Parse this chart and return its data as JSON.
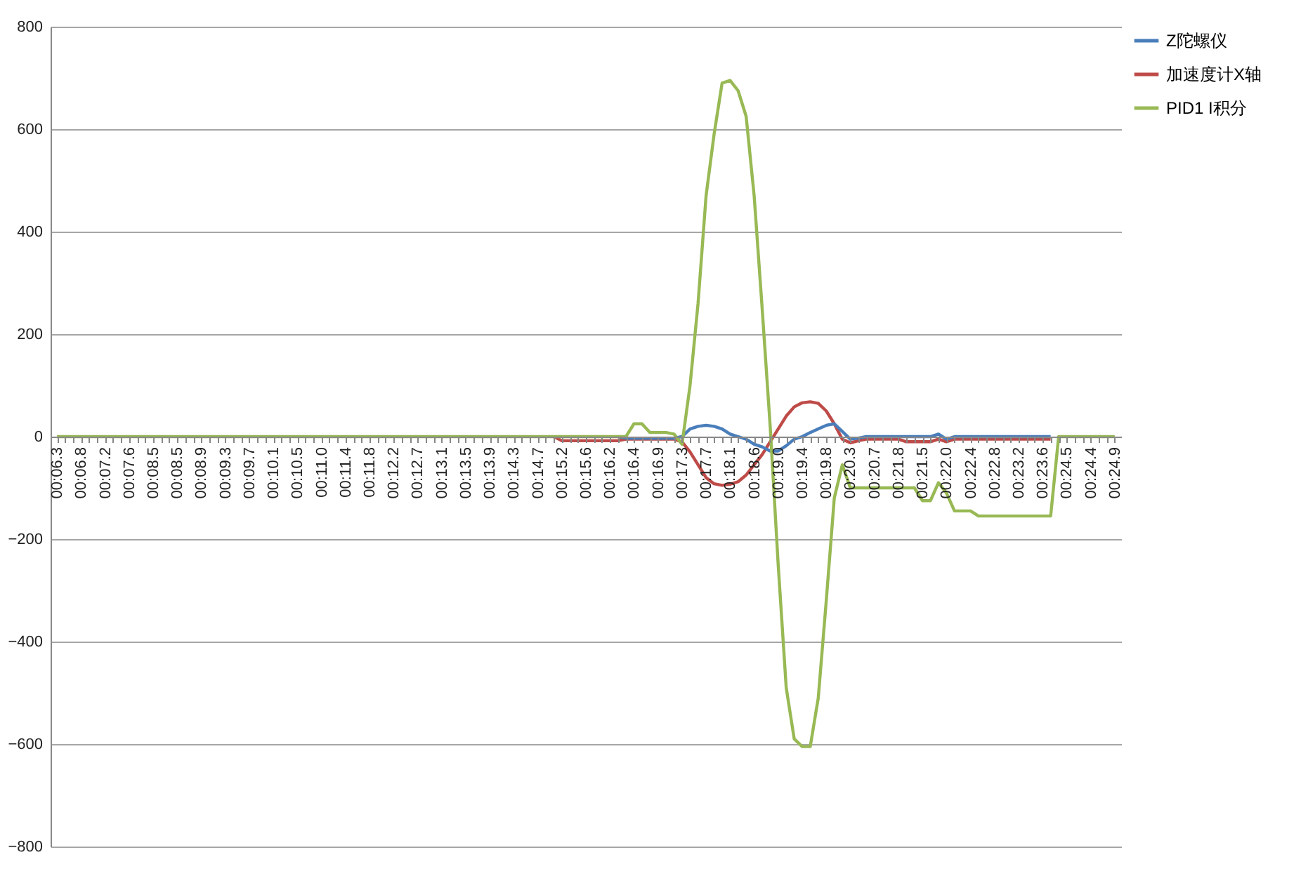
{
  "chart_data": {
    "type": "line",
    "categories": [
      "00:06.3",
      null,
      null,
      "00:06.8",
      null,
      null,
      "00:07.2",
      null,
      null,
      "00:07.6",
      null,
      null,
      "00:08.5",
      null,
      null,
      "00:08.5",
      null,
      null,
      "00:08.9",
      null,
      null,
      "00:09.3",
      null,
      null,
      "00:09.7",
      null,
      null,
      "00:10.1",
      null,
      null,
      "00:10.5",
      null,
      null,
      "00:11.0",
      null,
      null,
      "00:11.4",
      null,
      null,
      "00:11.8",
      null,
      null,
      "00:12.2",
      null,
      null,
      "00:12.7",
      null,
      null,
      "00:13.1",
      null,
      null,
      "00:13.5",
      null,
      null,
      "00:13.9",
      null,
      null,
      "00:14.3",
      null,
      null,
      "00:14.7",
      null,
      null,
      "00:15.2",
      null,
      null,
      "00:15.6",
      null,
      null,
      "00:16.2",
      null,
      null,
      "00:16.4",
      null,
      null,
      "00:16.9",
      null,
      null,
      "00:17.3",
      null,
      null,
      "00:17.7",
      null,
      null,
      "00:18.1",
      null,
      null,
      "00:18.6",
      null,
      null,
      "00:19.0",
      null,
      null,
      "00:19.4",
      null,
      null,
      "00:19.8",
      null,
      null,
      "00:20.3",
      null,
      null,
      "00:20.7",
      null,
      null,
      "00:21.8",
      null,
      null,
      "00:21.5",
      null,
      null,
      "00:22.0",
      null,
      null,
      "00:22.4",
      null,
      null,
      "00:22.8",
      null,
      null,
      "00:23.2",
      null,
      null,
      "00:23.6",
      null,
      null,
      "00:24.5",
      null,
      null,
      "00:24.4",
      null,
      null,
      "00:24.9"
    ],
    "series": [
      {
        "name": "Z陀螺仪",
        "color": "#4a7ebb",
        "values": [
          null,
          null,
          null,
          null,
          null,
          null,
          null,
          null,
          null,
          null,
          null,
          null,
          null,
          null,
          null,
          null,
          null,
          null,
          null,
          null,
          null,
          null,
          null,
          null,
          null,
          null,
          null,
          null,
          null,
          null,
          null,
          null,
          null,
          null,
          null,
          null,
          null,
          null,
          null,
          null,
          null,
          null,
          null,
          null,
          null,
          null,
          null,
          null,
          null,
          null,
          null,
          null,
          null,
          null,
          null,
          null,
          null,
          null,
          null,
          null,
          null,
          null,
          null,
          null,
          null,
          null,
          null,
          null,
          null,
          null,
          0,
          -3,
          -3,
          -3,
          -3,
          -3,
          -3,
          -3,
          0,
          15,
          20,
          22,
          20,
          15,
          5,
          0,
          -5,
          -15,
          -20,
          -28,
          -28,
          -18,
          -5,
          0,
          8,
          15,
          22,
          25,
          10,
          -5,
          -3,
          0,
          0,
          0,
          0,
          0,
          0,
          0,
          0,
          0,
          5,
          -5,
          0,
          0,
          0,
          0,
          0,
          0,
          0,
          0,
          0,
          0,
          0,
          0,
          0,
          null,
          null,
          null,
          null,
          null,
          null,
          null,
          null
        ]
      },
      {
        "name": "加速度计X轴",
        "color": "#be4b48",
        "values": [
          null,
          null,
          null,
          null,
          null,
          null,
          null,
          null,
          null,
          null,
          null,
          null,
          null,
          null,
          null,
          null,
          null,
          null,
          null,
          null,
          null,
          null,
          null,
          null,
          null,
          null,
          null,
          null,
          null,
          null,
          null,
          null,
          null,
          null,
          null,
          null,
          null,
          null,
          null,
          null,
          null,
          null,
          null,
          null,
          null,
          null,
          null,
          null,
          null,
          null,
          null,
          null,
          null,
          null,
          null,
          null,
          null,
          null,
          null,
          null,
          null,
          null,
          0,
          -8,
          -8,
          -8,
          -8,
          -8,
          -8,
          -8,
          -8,
          -5,
          -5,
          -5,
          -5,
          -5,
          -5,
          -5,
          -10,
          -30,
          -55,
          -80,
          -92,
          -95,
          -93,
          -88,
          -75,
          -55,
          -35,
          -10,
          15,
          40,
          58,
          66,
          68,
          65,
          50,
          25,
          -5,
          -12,
          -8,
          -5,
          -5,
          -5,
          -5,
          -5,
          -10,
          -10,
          -10,
          -10,
          -5,
          -10,
          -5,
          -5,
          -5,
          -5,
          -5,
          -5,
          -5,
          -5,
          -5,
          -5,
          -5,
          -5,
          -5,
          null,
          null,
          null,
          null,
          null,
          null,
          null,
          null
        ]
      },
      {
        "name": "PID1 I积分",
        "color": "#98b954",
        "values": [
          0,
          0,
          0,
          0,
          0,
          0,
          0,
          0,
          0,
          0,
          0,
          0,
          0,
          0,
          0,
          0,
          0,
          0,
          0,
          0,
          0,
          0,
          0,
          0,
          0,
          0,
          0,
          0,
          0,
          0,
          0,
          0,
          0,
          0,
          0,
          0,
          0,
          0,
          0,
          0,
          0,
          0,
          0,
          0,
          0,
          0,
          0,
          0,
          0,
          0,
          0,
          0,
          0,
          0,
          0,
          0,
          0,
          0,
          0,
          0,
          0,
          0,
          0,
          0,
          0,
          0,
          0,
          0,
          0,
          0,
          0,
          0,
          25,
          25,
          8,
          8,
          8,
          5,
          -15,
          100,
          260,
          470,
          590,
          690,
          695,
          675,
          625,
          470,
          250,
          20,
          -250,
          -490,
          -590,
          -605,
          -605,
          -510,
          -320,
          -120,
          -55,
          -100,
          -100,
          -100,
          -100,
          -100,
          -100,
          -100,
          -100,
          -100,
          -125,
          -125,
          -90,
          -110,
          -145,
          -145,
          -145,
          -155,
          -155,
          -155,
          -155,
          -155,
          -155,
          -155,
          -155,
          -155,
          -155,
          0,
          0,
          0,
          0,
          0,
          0,
          0,
          0
        ]
      }
    ],
    "ylim": [
      -800,
      800
    ],
    "yticks": [
      -800,
      -600,
      -400,
      -200,
      0,
      200,
      400,
      600,
      800
    ],
    "grid": "y",
    "legend": "right",
    "marker": "none",
    "line_style": "solid"
  }
}
